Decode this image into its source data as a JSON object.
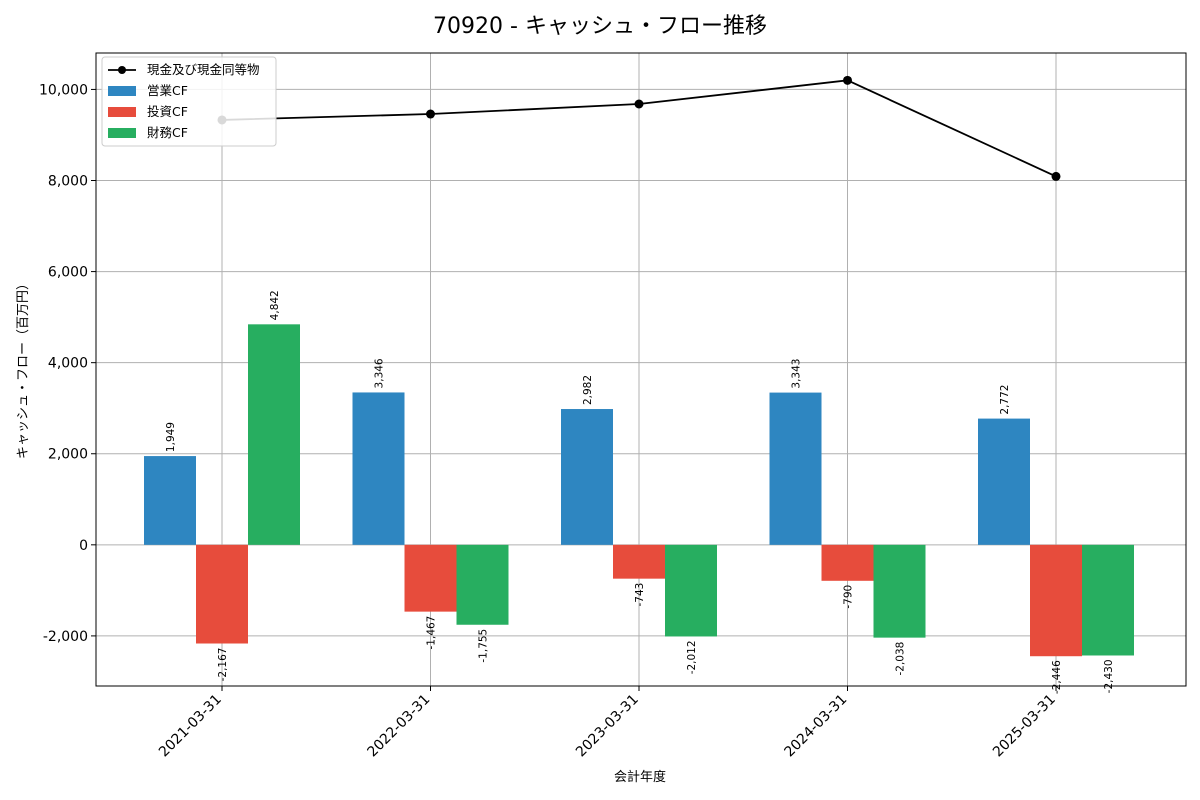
{
  "chart_data": {
    "type": "bar",
    "title": "70920 - キャッシュ・フロー推移",
    "xlabel": "会計年度",
    "ylabel": "キャッシュ・フロー（百万円）",
    "categories": [
      "2021-03-31",
      "2022-03-31",
      "2023-03-31",
      "2024-03-31",
      "2025-03-31"
    ],
    "ylim": [
      -3100,
      10800
    ],
    "yticks": [
      -2000,
      0,
      2000,
      4000,
      6000,
      8000,
      10000
    ],
    "ytick_labels": [
      "-2,000",
      "0",
      "2,000",
      "4,000",
      "6,000",
      "8,000",
      "10,000"
    ],
    "grid": true,
    "legend_position": "top-left",
    "series": [
      {
        "name": "営業CF",
        "kind": "bar",
        "color": "#2e86c1",
        "values": [
          1949,
          3346,
          2982,
          3343,
          2772
        ],
        "labels": [
          "1,949",
          "3,346",
          "2,982",
          "3,343",
          "2,772"
        ]
      },
      {
        "name": "投資CF",
        "kind": "bar",
        "color": "#e74c3c",
        "values": [
          -2167,
          -1467,
          -743,
          -790,
          -2446
        ],
        "labels": [
          "-2,167",
          "-1,467",
          "-743",
          "-790",
          "-2,446"
        ]
      },
      {
        "name": "財務CF",
        "kind": "bar",
        "color": "#27ae60",
        "values": [
          4842,
          -1755,
          -2012,
          -2038,
          -2430
        ],
        "labels": [
          "4,842",
          "-1,755",
          "-2,012",
          "-2,038",
          "-2,430"
        ]
      },
      {
        "name": "現金及び現金同等物",
        "kind": "line",
        "color": "#000000",
        "values": [
          9330,
          9460,
          9680,
          10200,
          8090
        ]
      }
    ]
  }
}
